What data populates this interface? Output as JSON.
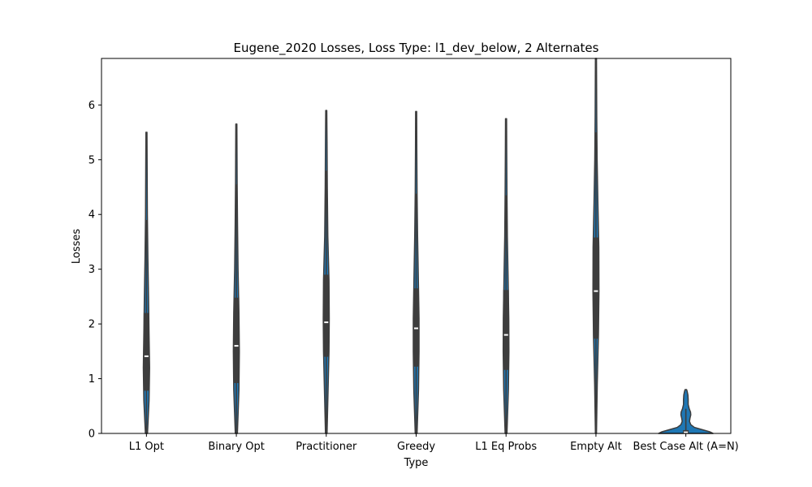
{
  "chart_data": {
    "type": "violin",
    "title": "Eugene_2020 Losses, Loss Type: l1_dev_below, 2 Alternates",
    "xlabel": "Type",
    "ylabel": "Losses",
    "ylim": [
      0,
      6.85
    ],
    "yticks": [
      0,
      1,
      2,
      3,
      4,
      5,
      6
    ],
    "categories": [
      "L1 Opt",
      "Binary Opt",
      "Practitioner",
      "Greedy",
      "L1 Eq Probs",
      "Empty Alt",
      "Best Case Alt (A=N)"
    ],
    "violin_color": "#1f77b4",
    "stat_color": "#3d3d3d",
    "median_color": "#ffffff",
    "series": [
      {
        "category": "L1 Opt",
        "min": 0,
        "q1": 0.78,
        "median": 1.41,
        "q3": 2.2,
        "whisker_high": 3.9,
        "max": 5.5,
        "density": [
          [
            0,
            0.4
          ],
          [
            0.6,
            1.0
          ],
          [
            1.2,
            1.2
          ],
          [
            1.8,
            1.0
          ],
          [
            2.5,
            0.8
          ],
          [
            3.2,
            0.55
          ],
          [
            4.0,
            0.35
          ],
          [
            5.0,
            0.25
          ],
          [
            5.5,
            0.2
          ]
        ]
      },
      {
        "category": "Binary Opt",
        "min": 0,
        "q1": 0.92,
        "median": 1.6,
        "q3": 2.48,
        "whisker_high": 4.55,
        "max": 5.65,
        "density": [
          [
            0,
            0.4
          ],
          [
            0.8,
            1.0
          ],
          [
            1.5,
            1.15
          ],
          [
            2.2,
            1.0
          ],
          [
            3.0,
            0.65
          ],
          [
            3.8,
            0.45
          ],
          [
            4.6,
            0.3
          ],
          [
            5.65,
            0.2
          ]
        ]
      },
      {
        "category": "Practitioner",
        "min": 0,
        "q1": 1.4,
        "median": 2.03,
        "q3": 2.9,
        "whisker_high": 4.8,
        "max": 5.9,
        "density": [
          [
            0,
            0.3
          ],
          [
            0.8,
            0.7
          ],
          [
            1.5,
            1.05
          ],
          [
            2.1,
            1.15
          ],
          [
            2.8,
            1.05
          ],
          [
            3.6,
            0.6
          ],
          [
            4.5,
            0.4
          ],
          [
            5.3,
            0.3
          ],
          [
            5.9,
            0.2
          ]
        ]
      },
      {
        "category": "Greedy",
        "min": 0,
        "q1": 1.22,
        "median": 1.92,
        "q3": 2.65,
        "whisker_high": 4.38,
        "max": 5.88,
        "density": [
          [
            0,
            0.35
          ],
          [
            0.8,
            0.9
          ],
          [
            1.5,
            1.1
          ],
          [
            2.1,
            1.1
          ],
          [
            2.8,
            0.85
          ],
          [
            3.6,
            0.55
          ],
          [
            4.4,
            0.35
          ],
          [
            5.2,
            0.25
          ],
          [
            5.88,
            0.2
          ]
        ]
      },
      {
        "category": "L1 Eq Probs",
        "min": 0,
        "q1": 1.16,
        "median": 1.8,
        "q3": 2.62,
        "whisker_high": 4.35,
        "max": 5.75,
        "density": [
          [
            0,
            0.35
          ],
          [
            0.8,
            0.9
          ],
          [
            1.5,
            1.1
          ],
          [
            2.1,
            1.05
          ],
          [
            2.8,
            0.8
          ],
          [
            3.6,
            0.5
          ],
          [
            4.4,
            0.35
          ],
          [
            5.2,
            0.25
          ],
          [
            5.75,
            0.2
          ]
        ]
      },
      {
        "category": "Empty Alt",
        "min": 0,
        "q1": 1.73,
        "median": 2.6,
        "q3": 3.58,
        "whisker_high": 5.5,
        "max": 6.85,
        "density": [
          [
            0,
            0.2
          ],
          [
            0.9,
            0.5
          ],
          [
            1.8,
            0.95
          ],
          [
            2.6,
            1.15
          ],
          [
            3.4,
            1.1
          ],
          [
            4.2,
            0.75
          ],
          [
            5.0,
            0.45
          ],
          [
            5.8,
            0.3
          ],
          [
            6.85,
            0.2
          ]
        ]
      },
      {
        "category": "Best Case Alt (A=N)",
        "min": 0,
        "q1": 0,
        "median": 0.02,
        "q3": 0.06,
        "whisker_high": 0.45,
        "max": 0.8,
        "density": [
          [
            0,
            10.5
          ],
          [
            0.03,
            9.2
          ],
          [
            0.07,
            6.2
          ],
          [
            0.11,
            3.3
          ],
          [
            0.16,
            1.9
          ],
          [
            0.22,
            1.4
          ],
          [
            0.28,
            1.6
          ],
          [
            0.34,
            1.9
          ],
          [
            0.39,
            1.8
          ],
          [
            0.45,
            1.3
          ],
          [
            0.53,
            0.9
          ],
          [
            0.62,
            0.9
          ],
          [
            0.7,
            0.8
          ],
          [
            0.77,
            0.5
          ],
          [
            0.8,
            0.3
          ]
        ]
      }
    ]
  }
}
